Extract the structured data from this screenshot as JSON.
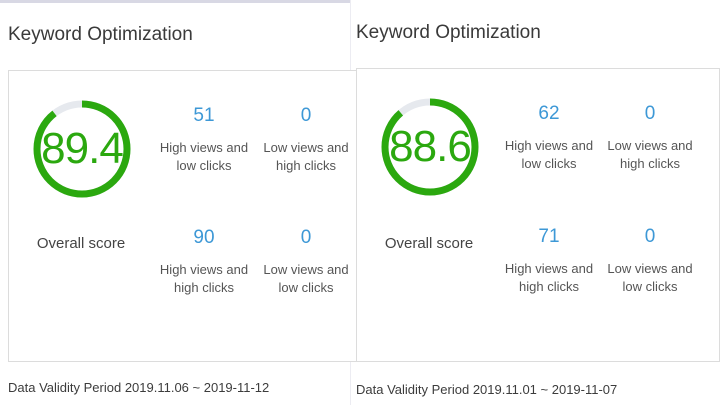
{
  "panels": [
    {
      "title": "Keyword Optimization",
      "score": "89.4",
      "score_value": 89.4,
      "overall_label": "Overall score",
      "metrics": [
        {
          "value": "51",
          "label": "High views and low clicks"
        },
        {
          "value": "0",
          "label": "Low views and high clicks"
        },
        {
          "value": "90",
          "label": "High views and high clicks"
        },
        {
          "value": "0",
          "label": "Low views and low clicks"
        }
      ],
      "footer": "Data Validity Period 2019.11.06 ~ 2019-11-12"
    },
    {
      "title": "Keyword Optimization",
      "score": "88.6",
      "score_value": 88.6,
      "overall_label": "Overall score",
      "metrics": [
        {
          "value": "62",
          "label": "High views and low clicks"
        },
        {
          "value": "0",
          "label": "Low views and high clicks"
        },
        {
          "value": "71",
          "label": "High views and high clicks"
        },
        {
          "value": "0",
          "label": "Low views and low clicks"
        }
      ],
      "footer": "Data Validity Period 2019.11.01 ~ 2019-11-07"
    }
  ],
  "colors": {
    "gauge_fill": "#2ba80f",
    "gauge_track": "#e6e9ee",
    "metric_value": "#3d98d6"
  }
}
